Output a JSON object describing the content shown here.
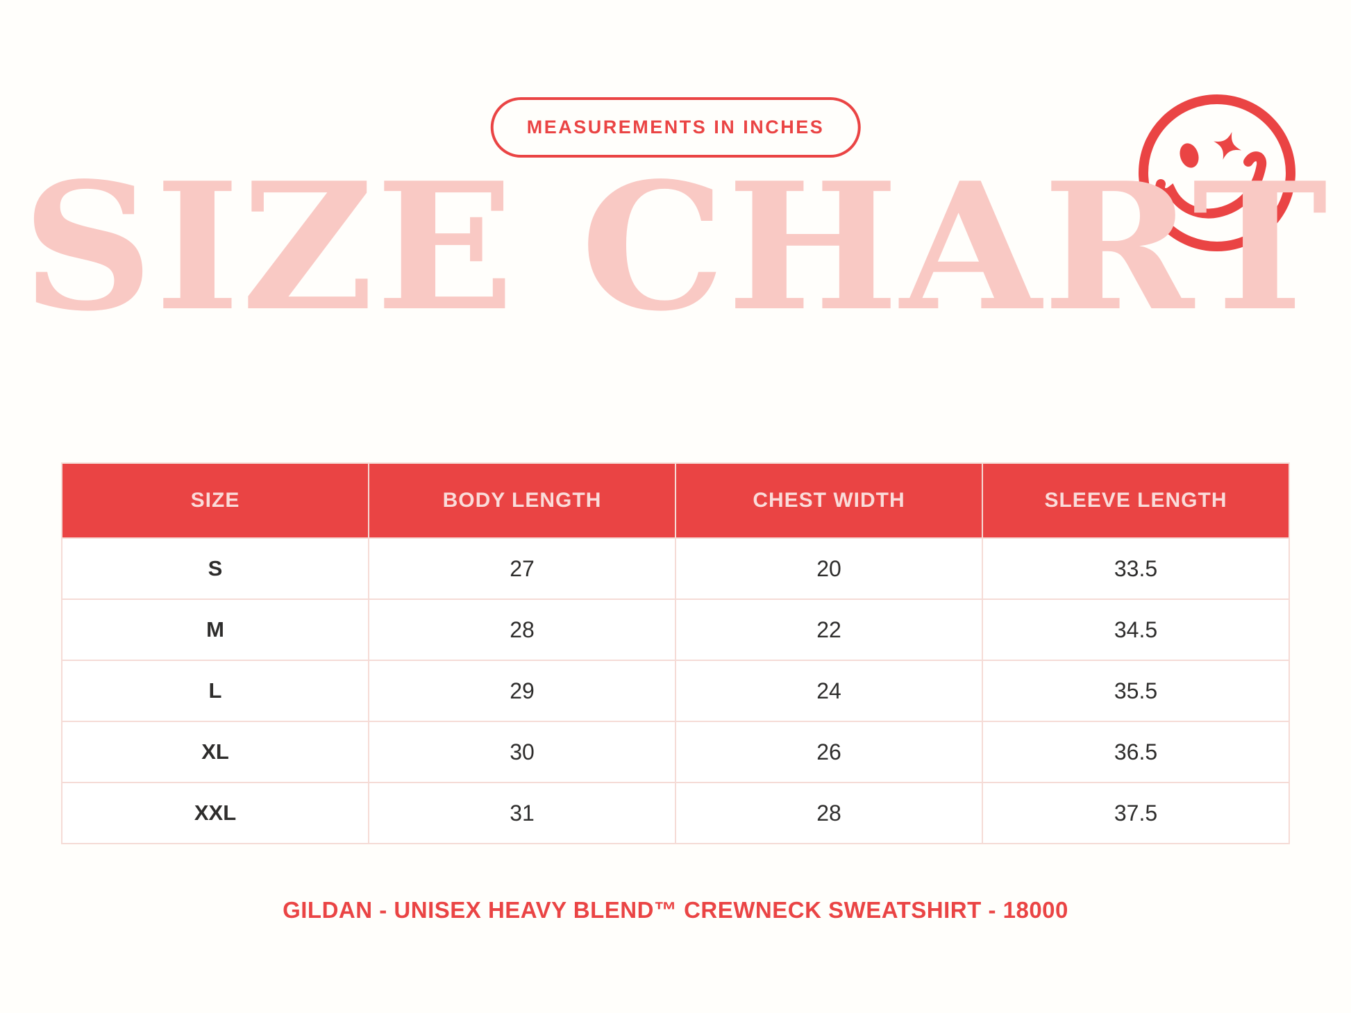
{
  "colors": {
    "red": "#EA4444",
    "title_pink": "#F9C9C4",
    "table_border": "#F5DBD6",
    "header_text": "#FADCDA",
    "cell_text": "#2E2D2C",
    "background": "#FFFEFB"
  },
  "badge": {
    "label": "MEASUREMENTS IN INCHES"
  },
  "title": {
    "text": "SIZE CHART"
  },
  "icons": {
    "top_right": "winking-smiley-face"
  },
  "table": {
    "columns": [
      "SIZE",
      "BODY LENGTH",
      "CHEST WIDTH",
      "SLEEVE LENGTH"
    ],
    "rows": [
      [
        "S",
        "27",
        "20",
        "33.5"
      ],
      [
        "M",
        "28",
        "22",
        "34.5"
      ],
      [
        "L",
        "29",
        "24",
        "35.5"
      ],
      [
        "XL",
        "30",
        "26",
        "36.5"
      ],
      [
        "XXL",
        "31",
        "28",
        "37.5"
      ]
    ]
  },
  "footer": {
    "text": "GILDAN - UNISEX HEAVY BLEND™ CREWNECK SWEATSHIRT - 18000"
  }
}
